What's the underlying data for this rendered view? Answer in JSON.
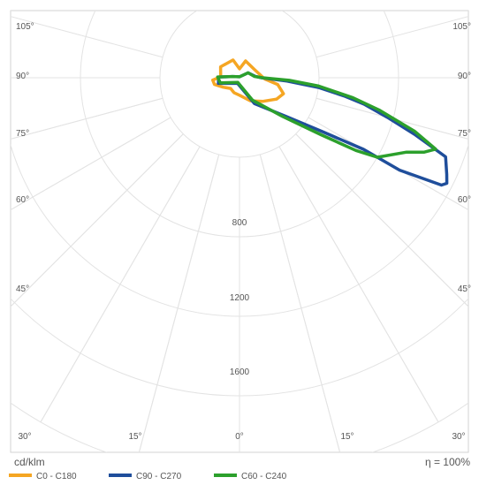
{
  "chart_data": {
    "type": "polar-line",
    "unit_label": "cd/klm",
    "efficiency_label": "η = 100%",
    "radial_ticks": [
      {
        "value": 800,
        "label": "800"
      },
      {
        "value": 1200,
        "label": "1200"
      },
      {
        "value": 1600,
        "label": "1600"
      }
    ],
    "radial_grid_values": [
      400,
      800,
      1200,
      1600,
      2000
    ],
    "radial_max": 2000,
    "angle_spokes": [
      -75,
      -60,
      -45,
      -30,
      -15,
      0,
      15,
      30,
      45,
      60,
      75,
      90,
      105
    ],
    "angle_labels_left": [
      "105°",
      "90°",
      "75°",
      "60°",
      "45°"
    ],
    "angle_labels_right": [
      "105°",
      "90°",
      "75°",
      "60°",
      "45°"
    ],
    "angle_labels_bottom": [
      "30°",
      "15°",
      "0°",
      "15°",
      "30°"
    ],
    "grid": true,
    "legend_position": "bottom",
    "series": [
      {
        "name": "C0 - C180",
        "color": "#f5a623",
        "points": [
          {
            "angle": -89,
            "value": 110
          },
          {
            "angle": -85,
            "value": 135
          },
          {
            "angle": -75,
            "value": 130
          },
          {
            "angle": -60,
            "value": 95
          },
          {
            "angle": -40,
            "value": 70
          },
          {
            "angle": -20,
            "value": 80
          },
          {
            "angle": 0,
            "value": 88
          },
          {
            "angle": 25,
            "value": 128
          },
          {
            "angle": 45,
            "value": 168
          },
          {
            "angle": 60,
            "value": 215
          },
          {
            "angle": 70,
            "value": 235
          },
          {
            "angle": 80,
            "value": 195
          },
          {
            "angle": 87,
            "value": 128
          },
          {
            "angle": 90,
            "value": 120
          },
          {
            "angle": 120,
            "value": 85
          },
          {
            "angle": 160,
            "value": 90
          },
          {
            "angle": 180,
            "value": 45
          },
          {
            "angle": 200,
            "value": 95
          },
          {
            "angle": 240,
            "value": 110
          },
          {
            "angle": 265,
            "value": 95
          }
        ]
      },
      {
        "name": "C90 - C270",
        "color": "#1f4e9b",
        "points": [
          {
            "angle": -92,
            "value": 105
          },
          {
            "angle": -75,
            "value": 110
          },
          {
            "angle": -20,
            "value": 30
          },
          {
            "angle": 30,
            "value": 150
          },
          {
            "angle": 50,
            "value": 300
          },
          {
            "angle": 57,
            "value": 500
          },
          {
            "angle": 60,
            "value": 720
          },
          {
            "angle": 60,
            "value": 930
          },
          {
            "angle": 62,
            "value": 1150
          },
          {
            "angle": 63,
            "value": 1170
          },
          {
            "angle": 65,
            "value": 1150
          },
          {
            "angle": 69,
            "value": 1110
          },
          {
            "angle": 72,
            "value": 930
          },
          {
            "angle": 75,
            "value": 770
          },
          {
            "angle": 78,
            "value": 640
          },
          {
            "angle": 80,
            "value": 540
          },
          {
            "angle": 83,
            "value": 400
          },
          {
            "angle": 86,
            "value": 240
          },
          {
            "angle": 90,
            "value": 110
          },
          {
            "angle": 95,
            "value": 80
          },
          {
            "angle": 120,
            "value": 50
          },
          {
            "angle": 180,
            "value": 5
          },
          {
            "angle": 260,
            "value": 35
          }
        ]
      },
      {
        "name": "C60 - C240",
        "color": "#2ca02c",
        "points": [
          {
            "angle": -92,
            "value": 110
          },
          {
            "angle": -75,
            "value": 100
          },
          {
            "angle": -20,
            "value": 25
          },
          {
            "angle": 30,
            "value": 130
          },
          {
            "angle": 48,
            "value": 290
          },
          {
            "angle": 55,
            "value": 500
          },
          {
            "angle": 58,
            "value": 690
          },
          {
            "angle": 60,
            "value": 800
          },
          {
            "angle": 66,
            "value": 920
          },
          {
            "angle": 68,
            "value": 1000
          },
          {
            "angle": 70,
            "value": 1050
          },
          {
            "angle": 73,
            "value": 920
          },
          {
            "angle": 77,
            "value": 720
          },
          {
            "angle": 80,
            "value": 580
          },
          {
            "angle": 84,
            "value": 400
          },
          {
            "angle": 87,
            "value": 250
          },
          {
            "angle": 90,
            "value": 115
          },
          {
            "angle": 95,
            "value": 75
          },
          {
            "angle": 120,
            "value": 50
          },
          {
            "angle": 180,
            "value": 5
          },
          {
            "angle": 260,
            "value": 35
          }
        ]
      }
    ]
  }
}
